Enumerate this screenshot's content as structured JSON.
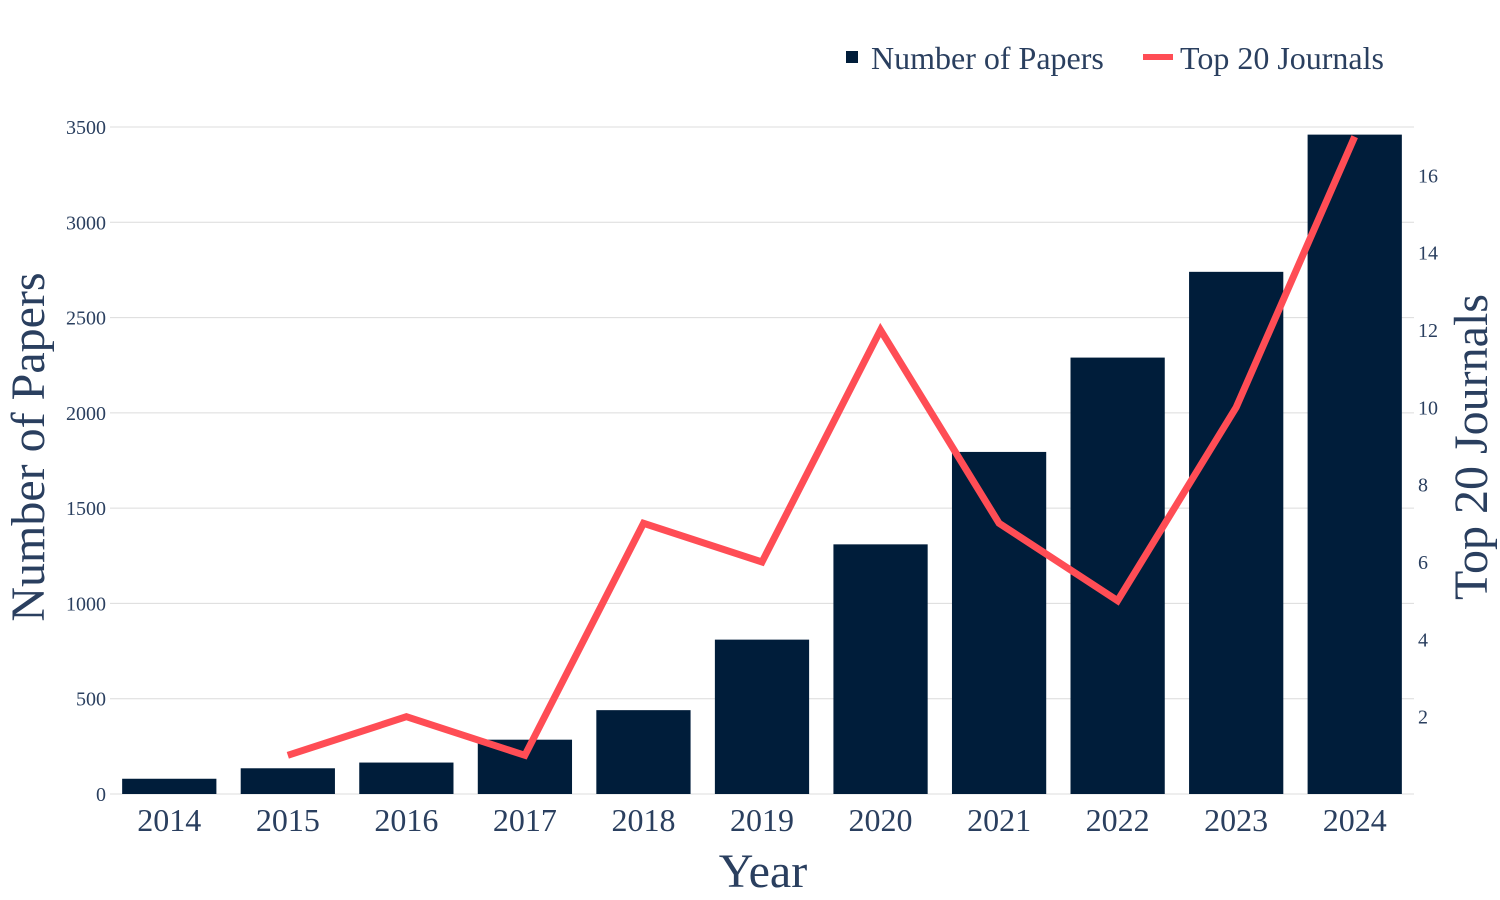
{
  "chart_data": {
    "type": "bar",
    "categories": [
      "2014",
      "2015",
      "2016",
      "2017",
      "2018",
      "2019",
      "2020",
      "2021",
      "2022",
      "2023",
      "2024"
    ],
    "series": [
      {
        "name": "Number of Papers",
        "type": "bar",
        "axis": "y",
        "values": [
          80,
          135,
          165,
          285,
          440,
          810,
          1310,
          1795,
          2290,
          2740,
          3460
        ]
      },
      {
        "name": "Top 20 Journals",
        "type": "line",
        "axis": "y2",
        "values": [
          null,
          1,
          2,
          1,
          7,
          6,
          12,
          7,
          5,
          10,
          17
        ]
      }
    ],
    "xlabel": "Year",
    "ylabel": "Number of Papers",
    "y2label": "Top 20 Journals",
    "ylim": [
      0,
      3500
    ],
    "y2lim": [
      0,
      17.25
    ],
    "yticks": [
      0,
      500,
      1000,
      1500,
      2000,
      2500,
      3000,
      3500
    ],
    "y2ticks": [
      2,
      4,
      6,
      8,
      10,
      12,
      14,
      16
    ],
    "grid": true,
    "legend": "top-right",
    "colors": {
      "bar": "#001d3a",
      "line": "#ff4d55",
      "text": "#2a3f5f",
      "grid": "#dcdcdc"
    }
  }
}
